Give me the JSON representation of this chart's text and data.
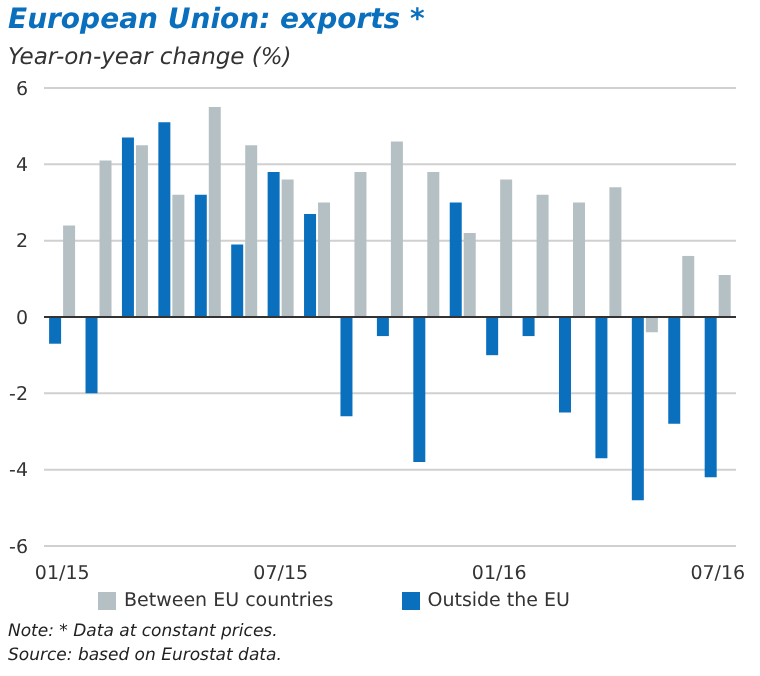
{
  "chart_data": {
    "type": "bar",
    "title": "European Union: exports *",
    "subtitle": "Year-on-year change (%)",
    "categories": [
      "01/15",
      null,
      null,
      null,
      null,
      null,
      "07/15",
      null,
      null,
      null,
      null,
      null,
      "01/16",
      null,
      null,
      null,
      null,
      null,
      "07/16"
    ],
    "series": [
      {
        "name": "Outside the EU",
        "color": "#0a6fbd",
        "values": [
          -0.7,
          -2.0,
          4.7,
          5.1,
          3.2,
          1.9,
          3.8,
          2.7,
          -2.6,
          -0.5,
          -3.8,
          3.0,
          -1.0,
          -0.5,
          -2.5,
          -3.7,
          -4.8,
          -2.8,
          -4.2
        ]
      },
      {
        "name": "Between EU countries",
        "color": "#b5c0c4",
        "values": [
          2.4,
          4.1,
          4.5,
          3.2,
          5.5,
          4.5,
          3.6,
          3.0,
          3.8,
          4.6,
          3.8,
          2.2,
          3.6,
          3.2,
          3.0,
          3.4,
          -0.4,
          1.6,
          1.1
        ]
      }
    ],
    "ylim": [
      -6,
      6
    ],
    "yticks": [
      -6,
      -4,
      -2,
      0,
      2,
      4,
      6
    ],
    "grid": "y",
    "legend": "bottom",
    "annotations": [
      "Note: * Data at constant prices.",
      "Source: based on Eurostat data."
    ]
  }
}
